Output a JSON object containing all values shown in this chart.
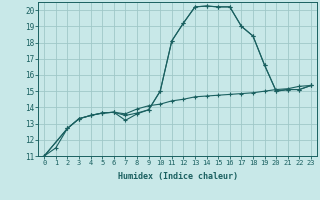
{
  "xlabel": "Humidex (Indice chaleur)",
  "bg_color": "#c8e8e8",
  "grid_color": "#a0c8c8",
  "line_color": "#1a6060",
  "xlim": [
    -0.5,
    23.5
  ],
  "ylim": [
    11,
    20.5
  ],
  "xticks": [
    0,
    1,
    2,
    3,
    4,
    5,
    6,
    7,
    8,
    9,
    10,
    11,
    12,
    13,
    14,
    15,
    16,
    17,
    18,
    19,
    20,
    21,
    22,
    23
  ],
  "yticks": [
    11,
    12,
    13,
    14,
    15,
    16,
    17,
    18,
    19,
    20
  ],
  "line1_x": [
    0,
    1,
    2,
    3,
    4,
    5,
    6,
    7,
    8,
    9,
    10,
    11,
    12,
    13,
    14,
    15,
    16,
    17,
    18,
    19,
    20,
    21,
    22,
    23
  ],
  "line1_y": [
    11.0,
    11.5,
    12.7,
    13.3,
    13.5,
    13.65,
    13.7,
    13.5,
    13.65,
    13.85,
    15.0,
    18.1,
    19.2,
    20.2,
    20.25,
    20.2,
    20.2,
    19.0,
    18.4,
    16.6,
    15.0,
    15.1,
    15.1,
    15.35
  ],
  "line2_x": [
    0,
    2,
    3,
    4,
    5,
    6,
    7,
    8,
    9,
    10,
    11,
    12,
    13,
    14,
    15,
    16,
    17,
    18,
    19,
    20,
    21,
    22,
    23
  ],
  "line2_y": [
    11.0,
    12.7,
    13.3,
    13.5,
    13.65,
    13.7,
    13.2,
    13.6,
    13.85,
    15.0,
    18.1,
    19.2,
    20.2,
    20.25,
    20.2,
    20.2,
    19.0,
    18.4,
    16.6,
    15.0,
    15.1,
    15.1,
    15.35
  ],
  "line3_x": [
    0,
    2,
    3,
    4,
    5,
    6,
    7,
    8,
    9,
    10,
    11,
    12,
    13,
    14,
    15,
    16,
    17,
    18,
    19,
    20,
    21,
    22,
    23
  ],
  "line3_y": [
    11.0,
    12.7,
    13.3,
    13.5,
    13.65,
    13.7,
    13.6,
    13.9,
    14.1,
    14.2,
    14.4,
    14.5,
    14.65,
    14.7,
    14.75,
    14.8,
    14.85,
    14.9,
    15.0,
    15.1,
    15.15,
    15.3,
    15.35
  ],
  "label_fontsize": 5.0,
  "ylabel_fontsize": 5.5,
  "xlabel_fontsize": 6.0
}
